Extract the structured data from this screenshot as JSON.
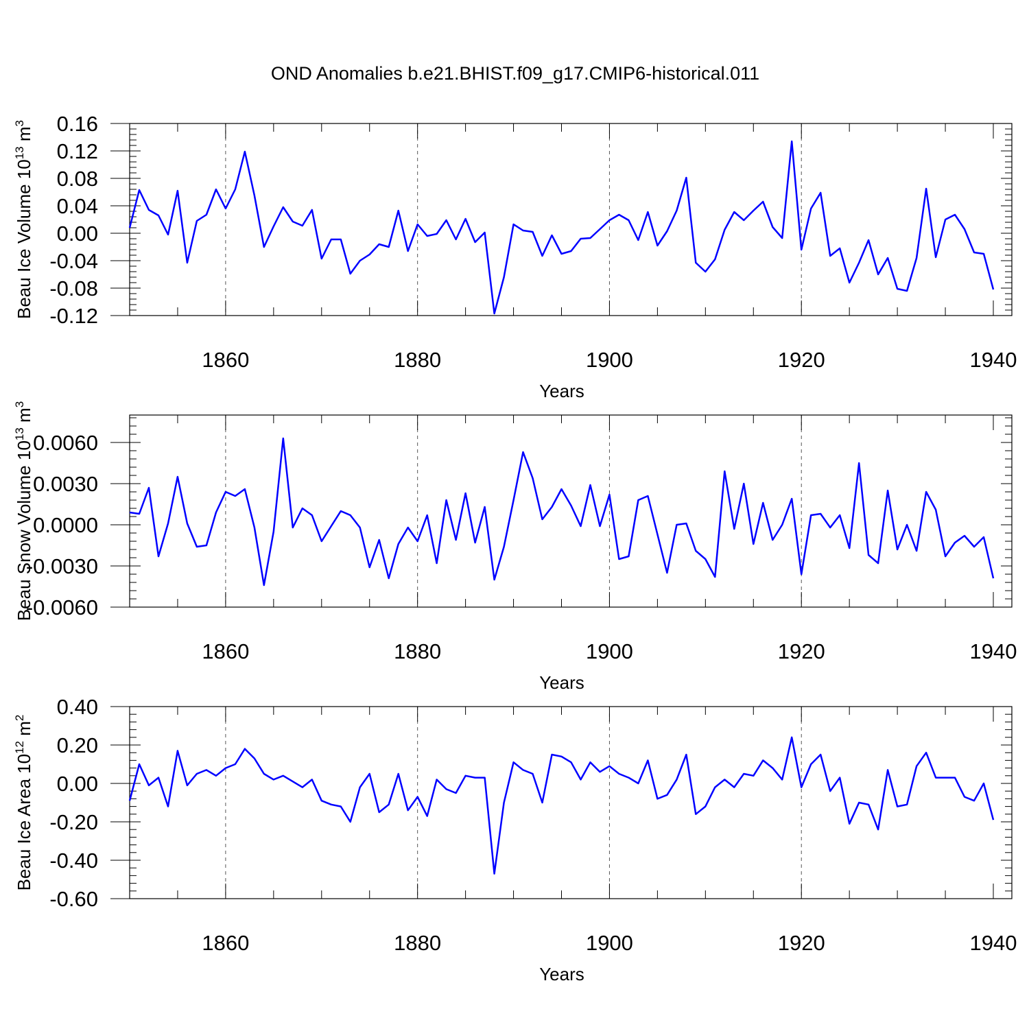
{
  "title": "OND Anomalies b.e21.BHIST.f09_g17.CMIP6-historical.011",
  "colors": {
    "line": "#0000ff",
    "axis": "#000000",
    "grid": "#555555"
  },
  "chart_data": [
    {
      "type": "line",
      "ylabel": "Beau Ice Volume 10",
      "ylabel_sup": "13",
      "ylabel_unit": "m",
      "ylabel_unit_sup": "3",
      "xlabel": "Years",
      "xlim": [
        1850,
        1940
      ],
      "ylim": [
        -0.12,
        0.16
      ],
      "xticks": [
        1860,
        1880,
        1900,
        1920,
        1940
      ],
      "yticks": [
        -0.12,
        -0.08,
        -0.04,
        0.0,
        0.04,
        0.08,
        0.12,
        0.16
      ],
      "ytick_labels": [
        "-0.12",
        "-0.08",
        "-0.04",
        "0.00",
        "0.04",
        "0.08",
        "0.12",
        "0.16"
      ],
      "grid": "dashed vertical at major x ticks",
      "x": [
        1850,
        1851,
        1852,
        1853,
        1854,
        1855,
        1856,
        1857,
        1858,
        1859,
        1860,
        1861,
        1862,
        1863,
        1864,
        1865,
        1866,
        1867,
        1868,
        1869,
        1870,
        1871,
        1872,
        1873,
        1874,
        1875,
        1876,
        1877,
        1878,
        1879,
        1880,
        1881,
        1882,
        1883,
        1884,
        1885,
        1886,
        1887,
        1888,
        1889,
        1890,
        1891,
        1892,
        1893,
        1894,
        1895,
        1896,
        1897,
        1898,
        1899,
        1900,
        1901,
        1902,
        1903,
        1904,
        1905,
        1906,
        1907,
        1908,
        1909,
        1910,
        1911,
        1912,
        1913,
        1914,
        1915,
        1916,
        1917,
        1918,
        1919,
        1920,
        1921,
        1922,
        1923,
        1924,
        1925,
        1926,
        1927,
        1928,
        1929,
        1930,
        1931,
        1932,
        1933,
        1934,
        1935,
        1936,
        1937,
        1938,
        1939,
        1940
      ],
      "values": [
        0.008,
        0.063,
        0.034,
        0.026,
        -0.002,
        0.062,
        -0.043,
        0.018,
        0.027,
        0.064,
        0.036,
        0.064,
        0.119,
        0.055,
        -0.02,
        0.01,
        0.038,
        0.017,
        0.011,
        0.034,
        -0.037,
        -0.009,
        -0.009,
        -0.059,
        -0.04,
        -0.031,
        -0.016,
        -0.02,
        0.033,
        -0.026,
        0.013,
        -0.004,
        -0.001,
        0.019,
        -0.009,
        0.021,
        -0.013,
        0.001,
        -0.117,
        -0.064,
        0.013,
        0.004,
        0.002,
        -0.033,
        -0.003,
        -0.03,
        -0.026,
        -0.008,
        -0.007,
        0.006,
        0.019,
        0.027,
        0.019,
        -0.01,
        0.031,
        -0.018,
        0.003,
        0.033,
        0.081,
        -0.043,
        -0.056,
        -0.038,
        0.005,
        0.031,
        0.019,
        0.033,
        0.046,
        0.009,
        -0.007,
        0.134,
        -0.024,
        0.036,
        0.059,
        -0.033,
        -0.022,
        -0.072,
        -0.043,
        -0.01,
        -0.06,
        -0.036,
        -0.081,
        -0.084,
        -0.036,
        0.065,
        -0.035,
        0.02,
        0.027,
        0.006,
        -0.028,
        -0.03,
        -0.082
      ]
    },
    {
      "type": "line",
      "ylabel": "Beau Snow Volume 10",
      "ylabel_sup": "13",
      "ylabel_unit": "m",
      "ylabel_unit_sup": "3",
      "xlabel": "Years",
      "xlim": [
        1850,
        1940
      ],
      "ylim": [
        -0.006,
        0.008
      ],
      "xticks": [
        1860,
        1880,
        1900,
        1920,
        1940
      ],
      "yticks": [
        -0.006,
        -0.003,
        0.0,
        0.003,
        0.006
      ],
      "ytick_labels": [
        "-0.0060",
        "-0.0030",
        "0.0000",
        "0.0030",
        "0.0060"
      ],
      "grid": "dashed vertical at major x ticks",
      "x": [
        1850,
        1851,
        1852,
        1853,
        1854,
        1855,
        1856,
        1857,
        1858,
        1859,
        1860,
        1861,
        1862,
        1863,
        1864,
        1865,
        1866,
        1867,
        1868,
        1869,
        1870,
        1871,
        1872,
        1873,
        1874,
        1875,
        1876,
        1877,
        1878,
        1879,
        1880,
        1881,
        1882,
        1883,
        1884,
        1885,
        1886,
        1887,
        1888,
        1889,
        1890,
        1891,
        1892,
        1893,
        1894,
        1895,
        1896,
        1897,
        1898,
        1899,
        1900,
        1901,
        1902,
        1903,
        1904,
        1905,
        1906,
        1907,
        1908,
        1909,
        1910,
        1911,
        1912,
        1913,
        1914,
        1915,
        1916,
        1917,
        1918,
        1919,
        1920,
        1921,
        1922,
        1923,
        1924,
        1925,
        1926,
        1927,
        1928,
        1929,
        1930,
        1931,
        1932,
        1933,
        1934,
        1935,
        1936,
        1937,
        1938,
        1939,
        1940
      ],
      "values": [
        0.0009,
        0.0008,
        0.0027,
        -0.0023,
        0.0001,
        0.0035,
        0.0001,
        -0.0016,
        -0.0015,
        0.0009,
        0.0024,
        0.0021,
        0.0026,
        -0.0002,
        -0.0044,
        -0.0005,
        0.0063,
        -0.0002,
        0.0012,
        0.0007,
        -0.0012,
        -0.0001,
        0.001,
        0.0007,
        -0.0002,
        -0.0031,
        -0.0011,
        -0.0039,
        -0.0014,
        -0.0002,
        -0.0012,
        0.0007,
        -0.0028,
        0.0018,
        -0.0011,
        0.0023,
        -0.0013,
        0.0013,
        -0.004,
        -0.0016,
        0.0018,
        0.0053,
        0.0034,
        0.0004,
        0.0013,
        0.0026,
        0.0014,
        -0.0001,
        0.0029,
        -0.0001,
        0.0022,
        -0.0025,
        -0.0023,
        0.0018,
        0.0021,
        -0.0007,
        -0.0035,
        0.0,
        0.0001,
        -0.0019,
        -0.0025,
        -0.0038,
        0.0039,
        -0.0003,
        0.003,
        -0.0014,
        0.0016,
        -0.0011,
        0.0,
        0.0019,
        -0.0036,
        0.0007,
        0.0008,
        -0.0002,
        0.0007,
        -0.0017,
        0.0045,
        -0.0022,
        -0.0028,
        0.0025,
        -0.0018,
        0.0,
        -0.0019,
        0.0024,
        0.0011,
        -0.0023,
        -0.0013,
        -0.0008,
        -0.0016,
        -0.0009,
        -0.0039
      ]
    },
    {
      "type": "line",
      "ylabel": "Beau Ice Area 10",
      "ylabel_sup": "12",
      "ylabel_unit": "m",
      "ylabel_unit_sup": "2",
      "xlabel": "Years",
      "xlim": [
        1850,
        1940
      ],
      "ylim": [
        -0.6,
        0.4
      ],
      "xticks": [
        1860,
        1880,
        1900,
        1920,
        1940
      ],
      "yticks": [
        -0.6,
        -0.4,
        -0.2,
        0.0,
        0.2,
        0.4
      ],
      "ytick_labels": [
        "-0.60",
        "-0.40",
        "-0.20",
        "0.00",
        "0.20",
        "0.40"
      ],
      "grid": "dashed vertical at major x ticks",
      "x": [
        1850,
        1851,
        1852,
        1853,
        1854,
        1855,
        1856,
        1857,
        1858,
        1859,
        1860,
        1861,
        1862,
        1863,
        1864,
        1865,
        1866,
        1867,
        1868,
        1869,
        1870,
        1871,
        1872,
        1873,
        1874,
        1875,
        1876,
        1877,
        1878,
        1879,
        1880,
        1881,
        1882,
        1883,
        1884,
        1885,
        1886,
        1887,
        1888,
        1889,
        1890,
        1891,
        1892,
        1893,
        1894,
        1895,
        1896,
        1897,
        1898,
        1899,
        1900,
        1901,
        1902,
        1903,
        1904,
        1905,
        1906,
        1907,
        1908,
        1909,
        1910,
        1911,
        1912,
        1913,
        1914,
        1915,
        1916,
        1917,
        1918,
        1919,
        1920,
        1921,
        1922,
        1923,
        1924,
        1925,
        1926,
        1927,
        1928,
        1929,
        1930,
        1931,
        1932,
        1933,
        1934,
        1935,
        1936,
        1937,
        1938,
        1939,
        1940
      ],
      "values": [
        -0.09,
        0.1,
        -0.01,
        0.03,
        -0.12,
        0.17,
        -0.01,
        0.05,
        0.07,
        0.04,
        0.08,
        0.1,
        0.18,
        0.13,
        0.05,
        0.02,
        0.04,
        0.01,
        -0.02,
        0.02,
        -0.09,
        -0.11,
        -0.12,
        -0.2,
        -0.02,
        0.05,
        -0.15,
        -0.11,
        0.05,
        -0.14,
        -0.07,
        -0.17,
        0.02,
        -0.03,
        -0.05,
        0.04,
        0.03,
        0.03,
        -0.47,
        -0.1,
        0.11,
        0.07,
        0.05,
        -0.1,
        0.15,
        0.14,
        0.11,
        0.02,
        0.11,
        0.06,
        0.09,
        0.05,
        0.03,
        0.0,
        0.12,
        -0.08,
        -0.06,
        0.02,
        0.15,
        -0.16,
        -0.12,
        -0.02,
        0.02,
        -0.02,
        0.05,
        0.04,
        0.12,
        0.08,
        0.02,
        0.24,
        -0.02,
        0.1,
        0.15,
        -0.04,
        0.03,
        -0.21,
        -0.1,
        -0.11,
        -0.24,
        0.07,
        -0.12,
        -0.11,
        0.09,
        0.16,
        0.03,
        0.03,
        0.03,
        -0.07,
        -0.09,
        0.0,
        -0.19
      ]
    }
  ]
}
